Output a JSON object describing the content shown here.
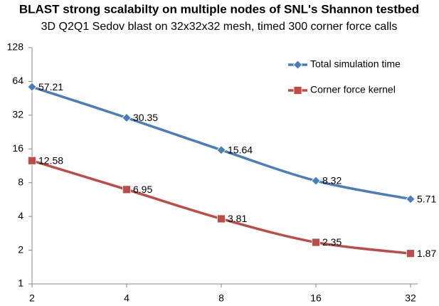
{
  "chart_data": {
    "type": "line",
    "title": "BLAST strong scalabilty on multiple nodes of SNL's Shannon testbed",
    "subtitle": "3D Q2Q1 Sedov blast on 32x32x32 mesh, timed 300 corner force calls",
    "x": [
      2,
      4,
      8,
      16,
      32
    ],
    "xlim": [
      2,
      32
    ],
    "xticks": [
      2,
      4,
      8,
      16,
      32
    ],
    "xlog": true,
    "ylim": [
      1,
      128
    ],
    "yticks": [
      1,
      2,
      4,
      8,
      16,
      32,
      64,
      128
    ],
    "ylog": true,
    "grid": false,
    "legend": "upper right",
    "series": [
      {
        "name": "Total simulation time",
        "color": "#4a7ebb",
        "marker": "diamond",
        "values": [
          57.21,
          30.35,
          15.64,
          8.32,
          5.71
        ]
      },
      {
        "name": "Corner force kernel",
        "color": "#be4b48",
        "marker": "square",
        "values": [
          12.58,
          6.95,
          3.81,
          2.35,
          1.87
        ]
      }
    ]
  }
}
